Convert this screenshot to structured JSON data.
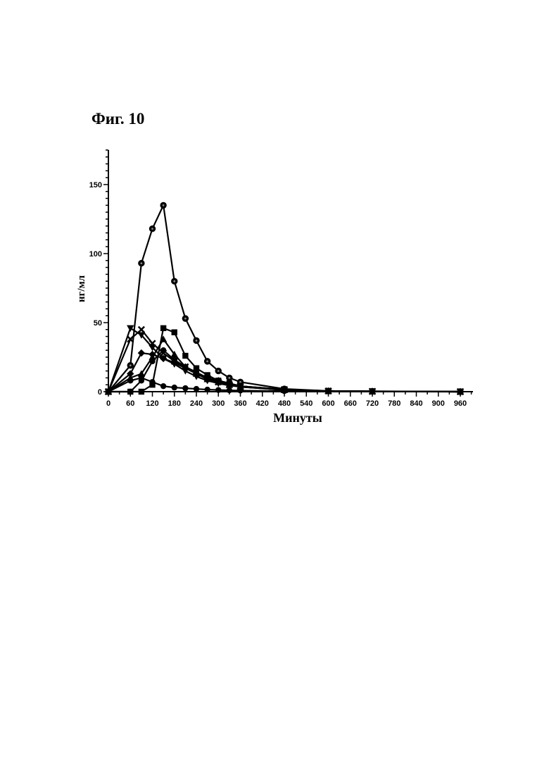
{
  "figure": {
    "title": "Фиг. 10"
  },
  "chart_data": {
    "type": "line",
    "xlabel": "Минуты",
    "ylabel": "нг/мл",
    "xlim": [
      0,
      960
    ],
    "ylim": [
      0,
      175
    ],
    "xticks": [
      0,
      60,
      120,
      180,
      240,
      300,
      360,
      420,
      480,
      540,
      600,
      660,
      720,
      780,
      840,
      900,
      960
    ],
    "yticks": [
      0,
      50,
      100,
      150
    ],
    "grid": false,
    "legend": "none",
    "series": [
      {
        "marker": "circle-dot",
        "color": "#000000",
        "x": [
          0,
          60,
          90,
          120,
          150,
          180,
          210,
          240,
          270,
          300,
          330,
          360,
          480,
          600,
          720,
          960
        ],
        "y": [
          0,
          19,
          93,
          118,
          135,
          80,
          53,
          37,
          22,
          15,
          10,
          7,
          2,
          0.5,
          0.3,
          0
        ]
      },
      {
        "marker": "square",
        "color": "#000000",
        "x": [
          0,
          60,
          90,
          120,
          150,
          180,
          210,
          240,
          270,
          300,
          330,
          360,
          480,
          600,
          720,
          960
        ],
        "y": [
          0,
          0,
          0,
          5,
          46,
          43,
          26,
          17,
          12,
          8,
          6,
          4,
          1.5,
          0.5,
          0.2,
          0
        ]
      },
      {
        "marker": "triangle-down",
        "color": "#000000",
        "x": [
          0,
          60,
          90,
          120,
          150,
          180,
          210,
          240,
          270,
          300,
          330,
          360,
          480,
          600,
          720,
          960
        ],
        "y": [
          0,
          46,
          41,
          32,
          24,
          20,
          15,
          11,
          8,
          6,
          4.5,
          3.5,
          1.5,
          0.5,
          0.2,
          0
        ]
      },
      {
        "marker": "x",
        "color": "#000000",
        "x": [
          0,
          60,
          90,
          120,
          150,
          180,
          210,
          240,
          270,
          300,
          330,
          360,
          480,
          600,
          720,
          960
        ],
        "y": [
          0,
          38,
          45,
          35,
          28,
          22,
          18,
          14,
          10,
          7,
          5,
          4,
          1.5,
          0.5,
          0.2,
          0
        ]
      },
      {
        "marker": "diamond",
        "color": "#000000",
        "x": [
          0,
          60,
          90,
          120,
          150,
          180,
          210,
          240,
          270,
          300,
          330,
          360,
          480,
          600,
          720,
          960
        ],
        "y": [
          0,
          13,
          28,
          27,
          24,
          21,
          17,
          13,
          10,
          8,
          6,
          4,
          1.5,
          0.5,
          0.2,
          0
        ]
      },
      {
        "marker": "triangle-up",
        "color": "#000000",
        "x": [
          0,
          60,
          90,
          120,
          150,
          180,
          210,
          240,
          270,
          300,
          330,
          360,
          480,
          600,
          720,
          960
        ],
        "y": [
          0,
          10,
          13,
          25,
          38,
          27,
          18,
          13,
          9,
          7,
          5,
          3.5,
          1.2,
          0.4,
          0.2,
          0
        ]
      },
      {
        "marker": "circle",
        "color": "#000000",
        "x": [
          0,
          60,
          90,
          120,
          150,
          180,
          210,
          240,
          270,
          300,
          330,
          360,
          480,
          600,
          720,
          960
        ],
        "y": [
          0,
          0,
          8,
          22,
          30,
          23,
          18,
          14,
          10,
          7,
          5,
          3.5,
          1.2,
          0.4,
          0.2,
          0
        ]
      },
      {
        "marker": "circle",
        "color": "#000000",
        "x": [
          0,
          60,
          90,
          120,
          150,
          180,
          210,
          240,
          270,
          300,
          330,
          360,
          480,
          600,
          720,
          960
        ],
        "y": [
          0,
          8,
          10,
          7,
          4,
          3,
          2.5,
          2,
          1.5,
          1.2,
          1,
          0.8,
          0.4,
          0.2,
          0.1,
          0
        ]
      }
    ]
  }
}
